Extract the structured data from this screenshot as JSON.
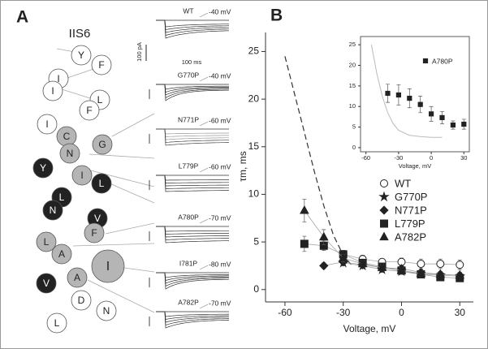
{
  "panel_a": {
    "label": "A",
    "title": "IIS6",
    "scale_current": "100 pA",
    "scale_time": "100 ms",
    "residues": [
      {
        "letter": "Y",
        "fill": "#ffffff"
      },
      {
        "letter": "F",
        "fill": "#ffffff"
      },
      {
        "letter": "I",
        "fill": "#ffffff"
      },
      {
        "letter": "I",
        "fill": "#ffffff"
      },
      {
        "letter": "L",
        "fill": "#ffffff"
      },
      {
        "letter": "F",
        "fill": "#ffffff"
      },
      {
        "letter": "I",
        "fill": "#ffffff"
      },
      {
        "letter": "C",
        "fill": "#b5b5b5"
      },
      {
        "letter": "G",
        "fill": "#b5b5b5"
      },
      {
        "letter": "N",
        "fill": "#b5b5b5"
      },
      {
        "letter": "Y",
        "fill": "#222222"
      },
      {
        "letter": "I",
        "fill": "#b5b5b5"
      },
      {
        "letter": "L",
        "fill": "#222222"
      },
      {
        "letter": "L",
        "fill": "#222222"
      },
      {
        "letter": "N",
        "fill": "#222222"
      },
      {
        "letter": "V",
        "fill": "#222222"
      },
      {
        "letter": "F",
        "fill": "#b5b5b5"
      },
      {
        "letter": "L",
        "fill": "#b5b5b5"
      },
      {
        "letter": "A",
        "fill": "#b5b5b5"
      },
      {
        "letter": "I",
        "fill": "#b5b5b5"
      },
      {
        "letter": "V",
        "fill": "#222222"
      },
      {
        "letter": "A",
        "fill": "#b5b5b5"
      },
      {
        "letter": "D",
        "fill": "#ffffff"
      },
      {
        "letter": "N",
        "fill": "#ffffff"
      },
      {
        "letter": "L",
        "fill": "#ffffff"
      }
    ],
    "traces": [
      {
        "name": "WT",
        "voltage": "-40 mV"
      },
      {
        "name": "G770P",
        "voltage": "-40 mV"
      },
      {
        "name": "N771P",
        "voltage": "-60 mV"
      },
      {
        "name": "L779P",
        "voltage": "-60 mV"
      },
      {
        "name": "A780P",
        "voltage": "-70 mV"
      },
      {
        "name": "I781P",
        "voltage": "-80 mV"
      },
      {
        "name": "A782P",
        "voltage": "-70 mV"
      }
    ]
  },
  "chart_data": [
    {
      "type": "scatter",
      "panel_label": "B",
      "xlabel": "Voltage, mV",
      "ylabel": "τm, ms",
      "xlim": [
        -70,
        37
      ],
      "ylim": [
        -1.3,
        27
      ],
      "xticks": [
        -60,
        -30,
        0,
        30
      ],
      "yticks": [
        0,
        5,
        10,
        15,
        20,
        25
      ],
      "legend": "right",
      "series": [
        {
          "name": "WT",
          "marker": "circle-open",
          "color": "#222222",
          "x": [
            -30,
            -20,
            -10,
            0,
            10,
            20,
            30
          ],
          "values": [
            3.7,
            3.2,
            2.9,
            2.9,
            2.7,
            2.7,
            2.6
          ],
          "errors": [
            0.4,
            0.4,
            0.3,
            0.4,
            0.5,
            0.5,
            0.5
          ]
        },
        {
          "name": "G770P",
          "marker": "star",
          "color": "#222222",
          "x": [
            -30,
            -20,
            -10,
            0,
            10,
            20,
            30
          ],
          "values": [
            2.8,
            2.5,
            2.1,
            1.9,
            1.6,
            1.5,
            1.4
          ],
          "errors": [
            0.3,
            0.3,
            0.3,
            0.3,
            0.3,
            0.3,
            0.3
          ]
        },
        {
          "name": "N771P",
          "marker": "diamond",
          "color": "#222222",
          "x": [
            -40,
            -30,
            -20,
            -10,
            0,
            10,
            20,
            30
          ],
          "values": [
            2.5,
            2.9,
            2.6,
            2.3,
            2.2,
            1.8,
            1.6,
            1.5
          ],
          "errors": [
            0.3,
            0.3,
            0.3,
            0.3,
            0.3,
            0.3,
            0.3,
            0.3
          ]
        },
        {
          "name": "L779P",
          "marker": "square",
          "color": "#222222",
          "x": [
            -50,
            -40,
            -30,
            -20,
            -10,
            0,
            10,
            20,
            30
          ],
          "values": [
            4.8,
            4.6,
            3.7,
            2.8,
            2.4,
            2.0,
            1.6,
            1.3,
            1.2
          ],
          "errors": [
            0.8,
            0.5,
            0.4,
            0.3,
            0.3,
            0.3,
            0.3,
            0.3,
            0.3
          ]
        },
        {
          "name": "A782P",
          "marker": "triangle",
          "color": "#222222",
          "x": [
            -50,
            -40,
            -30,
            -20,
            -10,
            0,
            10,
            20,
            30
          ],
          "values": [
            8.3,
            5.5,
            3.3,
            2.7,
            2.3,
            2.0,
            1.7,
            1.6,
            1.5
          ],
          "errors": [
            1.2,
            0.8,
            0.4,
            0.3,
            0.3,
            0.3,
            0.3,
            0.3,
            0.3
          ]
        }
      ],
      "dashed_curve": {
        "color": "#333333",
        "x": [
          -60,
          -55,
          -50,
          -45,
          -40,
          -35,
          -30,
          -25
        ],
        "values": [
          24.5,
          20.5,
          16.5,
          12.5,
          8.8,
          5.7,
          3.6,
          2.4
        ]
      }
    },
    {
      "type": "scatter",
      "xlabel": "Voltage, mV",
      "legend": "upper right",
      "xlim": [
        -65,
        35
      ],
      "ylim": [
        -1,
        27
      ],
      "xticks": [
        -60,
        -30,
        0,
        30
      ],
      "yticks": [
        0,
        5,
        10,
        15,
        20,
        25
      ],
      "series": [
        {
          "name": "A780P",
          "marker": "square",
          "color": "#222222",
          "x": [
            -40,
            -30,
            -20,
            -10,
            0,
            10,
            20,
            30
          ],
          "values": [
            13.2,
            12.8,
            12.0,
            10.5,
            8.2,
            7.3,
            5.5,
            5.7
          ],
          "errors": [
            2.2,
            2.5,
            2.3,
            2.0,
            1.8,
            1.5,
            1.0,
            1.2
          ]
        }
      ],
      "curve": {
        "color": "#bbbbbb",
        "x": [
          -55,
          -50,
          -45,
          -40,
          -35,
          -30,
          -20,
          -10,
          0,
          10
        ],
        "values": [
          25,
          18,
          12.5,
          8.5,
          5.8,
          4.2,
          3.0,
          2.7,
          2.5,
          2.5
        ]
      }
    }
  ]
}
